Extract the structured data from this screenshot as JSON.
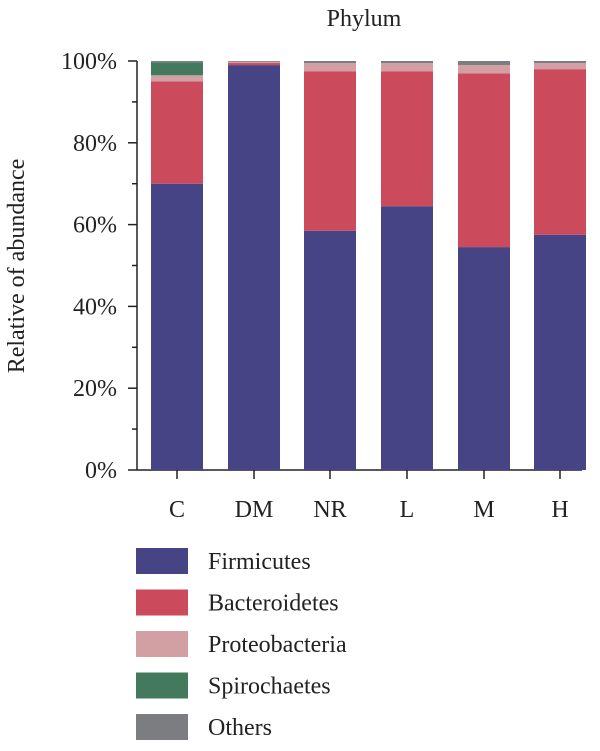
{
  "chart_data": {
    "type": "bar",
    "stacked": true,
    "title": "Phylum",
    "xlabel": "",
    "ylabel": "Relative of abundance",
    "ylim": [
      0,
      100
    ],
    "yticks": [
      "0%",
      "20%",
      "40%",
      "60%",
      "80%",
      "100%"
    ],
    "categories": [
      "C",
      "DM",
      "NR",
      "L",
      "M",
      "H"
    ],
    "series": [
      {
        "name": "Firmicutes",
        "color": "#474486",
        "values": [
          70,
          99,
          58.5,
          64.5,
          54.5,
          57.5
        ]
      },
      {
        "name": "Bacteroidetes",
        "color": "#CB4B5D",
        "values": [
          25,
          0.5,
          39,
          33,
          42.5,
          40.5
        ]
      },
      {
        "name": "Proteobacteria",
        "color": "#D2A0A3",
        "values": [
          1.5,
          0.3,
          2,
          2,
          2,
          1.5
        ]
      },
      {
        "name": "Spirochaetes",
        "color": "#437A5D",
        "values": [
          3.2,
          0,
          0,
          0,
          0,
          0
        ]
      },
      {
        "name": "Others",
        "color": "#7B7D80",
        "values": [
          0.3,
          0.2,
          0.5,
          0.5,
          1,
          0.5
        ]
      }
    ],
    "legend_position": "bottom"
  }
}
